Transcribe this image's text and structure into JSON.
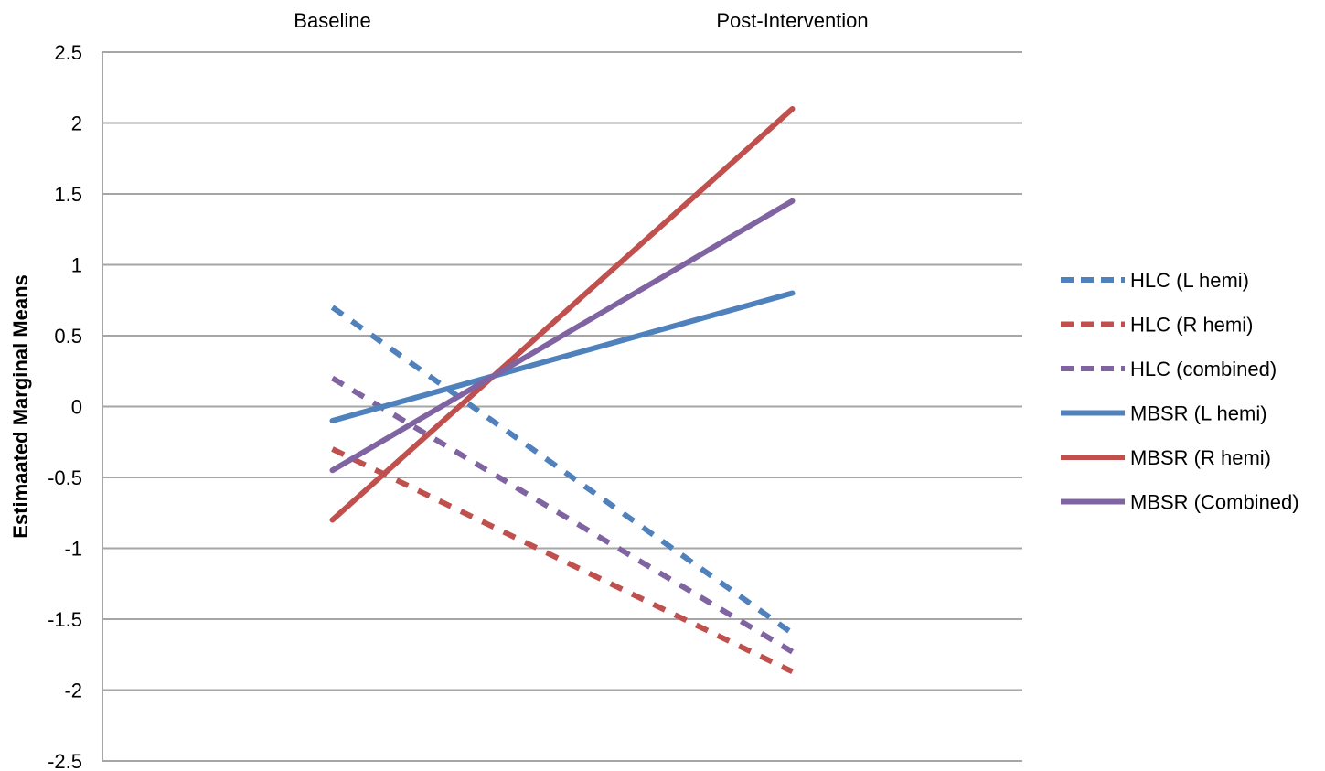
{
  "chart_data": {
    "type": "line",
    "categories": [
      "Baseline",
      "Post-Intervention"
    ],
    "ylabel": "Estimaated Marginal Means",
    "xlabel": "",
    "ylim": [
      -2.5,
      2.5
    ],
    "yticks": [
      2.5,
      2,
      1.5,
      1,
      0.5,
      0,
      -0.5,
      -1,
      -1.5,
      -2,
      -2.5
    ],
    "ytick_labels": [
      "2.5",
      "2",
      "1.5",
      "1",
      "0.5",
      "0",
      "-0.5",
      "-1",
      "-1.5",
      "-2",
      "-2.5"
    ],
    "x_axis_position": "top",
    "grid": true,
    "legend_position": "right",
    "series": [
      {
        "name": "HLC (L hemi)",
        "values": [
          0.7,
          -1.6
        ],
        "color": "#4f81bd",
        "dashed": true
      },
      {
        "name": "HLC (R hemi)",
        "values": [
          -0.3,
          -1.87
        ],
        "color": "#c0504d",
        "dashed": true
      },
      {
        "name": "HLC (combined)",
        "values": [
          0.2,
          -1.73
        ],
        "color": "#8064a2",
        "dashed": true
      },
      {
        "name": "MBSR (L hemi)",
        "values": [
          -0.1,
          0.8
        ],
        "color": "#4f81bd",
        "dashed": false
      },
      {
        "name": "MBSR (R hemi)",
        "values": [
          -0.8,
          2.1
        ],
        "color": "#c0504d",
        "dashed": false
      },
      {
        "name": "MBSR (Combined)",
        "values": [
          -0.45,
          1.45
        ],
        "color": "#8064a2",
        "dashed": false
      }
    ]
  }
}
